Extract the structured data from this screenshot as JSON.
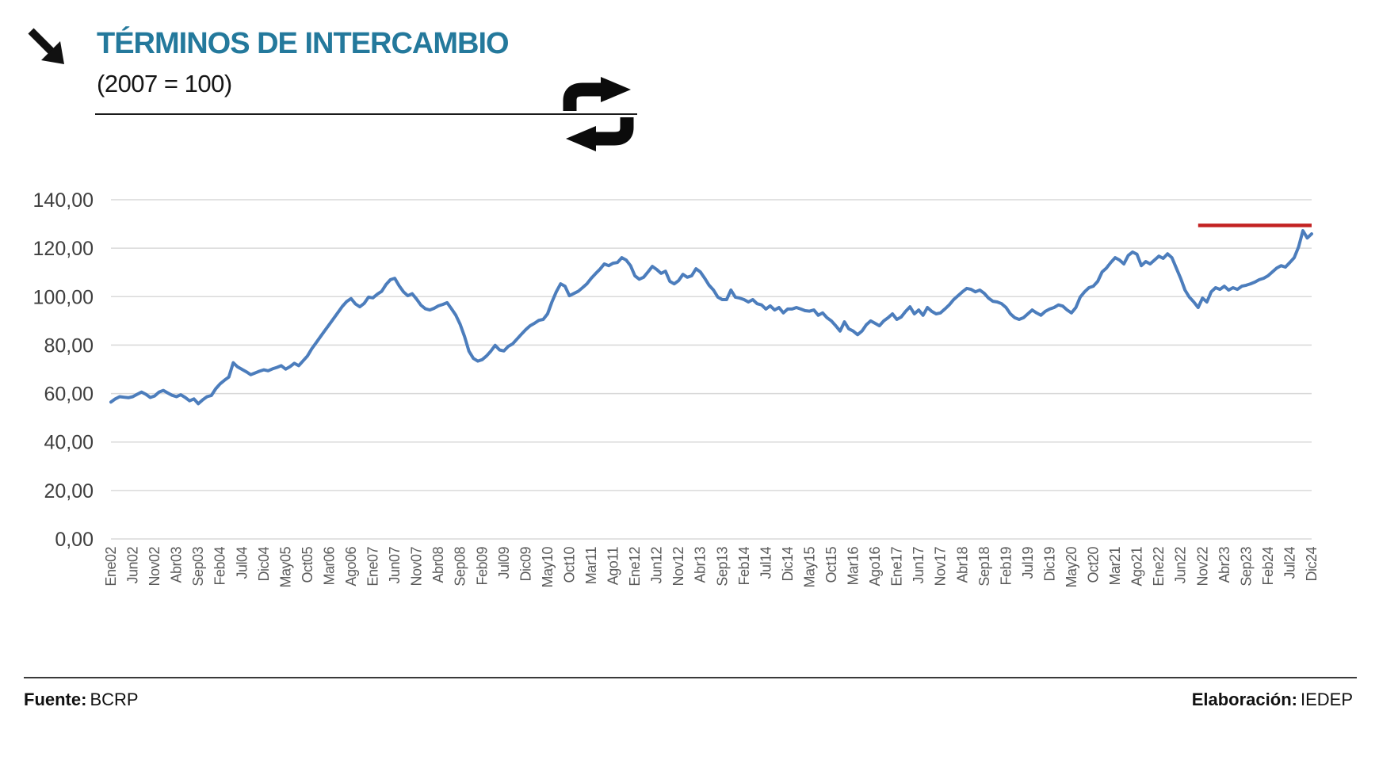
{
  "header": {
    "title": "TÉRMINOS DE INTERCAMBIO",
    "subtitle": "(2007 = 100)",
    "title_color": "#24799C"
  },
  "icons": {
    "top_left": "diagonal-down-right-arrow",
    "header_right": "exchange-swap-arrows"
  },
  "footer": {
    "source_label": "Fuente:",
    "source_value": "BCRP",
    "elaboration_label": "Elaboración:",
    "elaboration_value": "IEDEP"
  },
  "chart_data": {
    "type": "line",
    "title": "TÉRMINOS DE INTERCAMBIO (2007 = 100)",
    "frequency": "monthly",
    "x_start": "Ene02",
    "x_end": "Dic24",
    "ylim": [
      0,
      140
    ],
    "ytick_step": 20,
    "ytick_labels": [
      "0,00",
      "20,00",
      "40,00",
      "60,00",
      "80,00",
      "100,00",
      "120,00",
      "140,00"
    ],
    "xtick_every_months": 5,
    "xtick_labels": [
      "Ene02",
      "Jun02",
      "Nov02",
      "Abr03",
      "Sep03",
      "Feb04",
      "Jul04",
      "Dic04",
      "May05",
      "Oct05",
      "Mar06",
      "Ago06",
      "Ene07",
      "Jun07",
      "Nov07",
      "Abr08",
      "Sep08",
      "Feb09",
      "Jul09",
      "Dic09",
      "May10",
      "Oct10",
      "Mar11",
      "Ago11",
      "Ene12",
      "Jun12",
      "Nov12",
      "Abr13",
      "Sep13",
      "Feb14",
      "Jul14",
      "Dic14",
      "May15",
      "Oct15",
      "Mar16",
      "Ago16",
      "Ene17",
      "Jun17",
      "Nov17",
      "Abr18",
      "Sep18",
      "Feb19",
      "Jul19",
      "Dic19",
      "May20",
      "Oct20",
      "Mar21",
      "Ago21",
      "Ene22",
      "Jun22",
      "Nov22",
      "Abr23",
      "Sep23",
      "Feb24",
      "Jul24",
      "Dic24"
    ],
    "grid": true,
    "legend": false,
    "series": [
      {
        "name": "Términos de intercambio",
        "color": "#4C7DBC",
        "values": [
          56.5,
          57.8,
          58.7,
          58.5,
          58.3,
          58.7,
          59.7,
          60.6,
          59.7,
          58.4,
          59.0,
          60.6,
          61.3,
          60.3,
          59.3,
          58.7,
          59.5,
          58.4,
          57.0,
          57.8,
          55.8,
          57.4,
          58.7,
          59.2,
          62.0,
          64.0,
          65.5,
          66.8,
          72.7,
          71.0,
          70.0,
          69.0,
          67.8,
          68.5,
          69.2,
          69.8,
          69.4,
          70.2,
          70.8,
          71.5,
          70.1,
          71.1,
          72.5,
          71.5,
          73.5,
          75.5,
          78.5,
          81.0,
          83.5,
          86.0,
          88.5,
          91.0,
          93.5,
          96.0,
          98.0,
          99.2,
          97.0,
          95.8,
          97.2,
          99.8,
          99.5,
          101.0,
          102.2,
          105.0,
          107.0,
          107.6,
          104.5,
          102.0,
          100.4,
          101.2,
          99.0,
          96.5,
          95.0,
          94.5,
          95.2,
          96.2,
          96.8,
          97.5,
          95.0,
          92.3,
          88.5,
          83.5,
          77.5,
          74.5,
          73.4,
          74.0,
          75.5,
          77.5,
          79.9,
          78.0,
          77.6,
          79.5,
          80.5,
          82.5,
          84.5,
          86.4,
          88.0,
          89.0,
          90.2,
          90.6,
          92.9,
          97.8,
          102.0,
          105.3,
          104.3,
          100.4,
          101.3,
          102.2,
          103.7,
          105.3,
          107.6,
          109.5,
          111.3,
          113.5,
          112.8,
          113.8,
          114.1,
          116.1,
          115.1,
          112.8,
          108.6,
          107.2,
          108.0,
          110.2,
          112.5,
          111.2,
          109.6,
          110.5,
          106.3,
          105.3,
          106.6,
          109.2,
          108.0,
          108.6,
          111.5,
          110.2,
          107.6,
          104.7,
          102.7,
          99.8,
          98.8,
          98.8,
          102.7,
          99.8,
          99.4,
          98.8,
          97.8,
          98.8,
          97.1,
          96.6,
          94.9,
          96.2,
          94.5,
          95.5,
          93.3,
          94.9,
          94.9,
          95.5,
          94.9,
          94.2,
          94.0,
          94.5,
          92.3,
          93.3,
          91.3,
          90.0,
          88.0,
          85.8,
          89.6,
          86.7,
          85.8,
          84.3,
          85.8,
          88.4,
          90.0,
          89.0,
          88.0,
          90.0,
          91.3,
          92.9,
          90.6,
          91.6,
          93.9,
          95.8,
          92.9,
          94.5,
          92.3,
          95.5,
          93.9,
          92.9,
          93.3,
          94.9,
          96.6,
          98.8,
          100.4,
          102.0,
          103.4,
          103.0,
          102.0,
          102.7,
          101.4,
          99.4,
          98.1,
          97.8,
          97.1,
          95.5,
          92.9,
          91.3,
          90.6,
          91.3,
          92.9,
          94.5,
          93.3,
          92.3,
          93.9,
          94.9,
          95.5,
          96.6,
          96.1,
          94.5,
          93.3,
          95.5,
          99.8,
          102.0,
          103.7,
          104.3,
          106.3,
          110.2,
          111.8,
          114.1,
          116.1,
          115.1,
          113.5,
          117.0,
          118.4,
          117.5,
          112.8,
          114.5,
          113.5,
          115.1,
          116.7,
          115.8,
          117.7,
          116.1,
          111.8,
          107.6,
          102.7,
          99.8,
          97.8,
          95.5,
          99.4,
          97.8,
          102.0,
          103.7,
          103.0,
          104.3,
          102.7,
          103.7,
          103.0,
          104.3,
          104.7,
          105.3,
          106.0,
          107.0,
          107.6,
          108.6,
          110.2,
          111.8,
          112.8,
          112.2,
          114.1,
          116.1,
          120.5,
          127.2,
          124.2,
          125.9
        ]
      }
    ],
    "reference_line": {
      "color": "#C32222",
      "value": 129.4,
      "from_month_index": 249,
      "to_month_index": 275
    }
  }
}
